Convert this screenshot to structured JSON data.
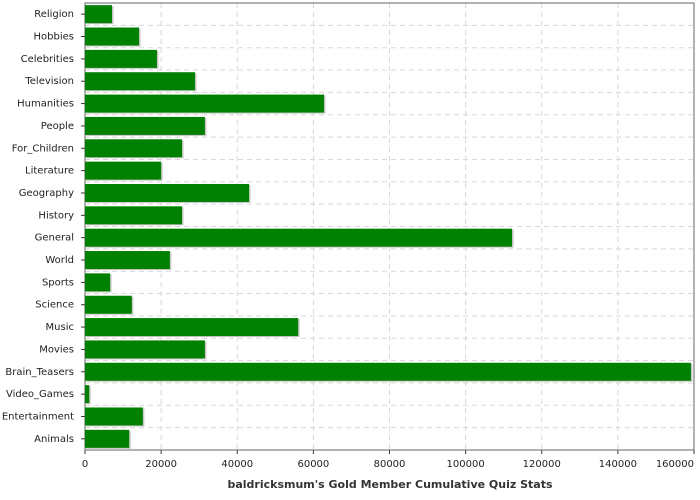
{
  "chart_data": {
    "type": "bar",
    "orientation": "horizontal",
    "title": "baldricksmum's Gold Member Cumulative Quiz Stats",
    "categories": [
      "Religion",
      "Hobbies",
      "Celebrities",
      "Television",
      "Humanities",
      "People",
      "For_Children",
      "Literature",
      "Geography",
      "History",
      "General",
      "World",
      "Sports",
      "Science",
      "Music",
      "Movies",
      "Brain_Teasers",
      "Video_Games",
      "Entertainment",
      "Animals"
    ],
    "values": [
      7100,
      14200,
      18900,
      28900,
      62800,
      31500,
      25500,
      20000,
      43100,
      25500,
      112200,
      22300,
      6600,
      12300,
      56000,
      31500,
      159200,
      1100,
      15200,
      11600
    ],
    "color": "#008000",
    "xlim": [
      0,
      160000
    ],
    "xticks": [
      0,
      20000,
      40000,
      60000,
      80000,
      100000,
      120000,
      140000,
      160000
    ],
    "grid": true
  }
}
